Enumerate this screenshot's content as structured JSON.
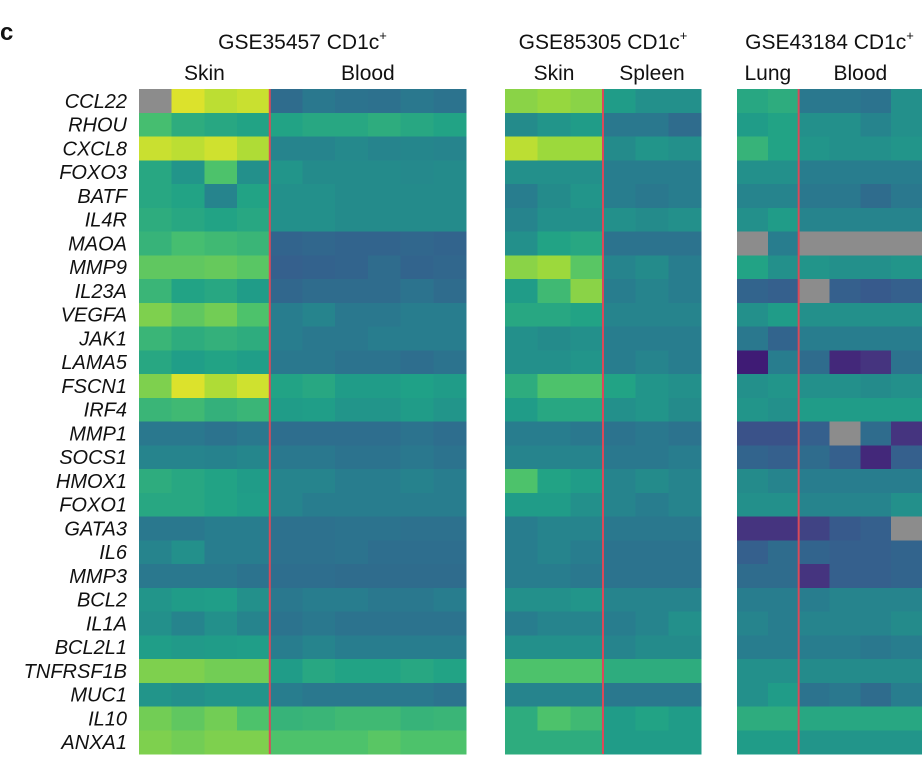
{
  "panel_label": "c",
  "colors": {
    "divider": "#d94a5a",
    "missing": "#8c8c8c",
    "scale": [
      "#3b0f70",
      "#46327e",
      "#365c8d",
      "#277f8e",
      "#1fa187",
      "#4ac16d",
      "#a0da39",
      "#fde725"
    ]
  },
  "chart_data": {
    "type": "heatmap",
    "color_scale": "viridis",
    "value_range": [
      0,
      1
    ],
    "missing_color": "gray",
    "genes": [
      "CCL22",
      "RHOU",
      "CXCL8",
      "FOXO3",
      "BATF",
      "IL4R",
      "MAOA",
      "MMP9",
      "IL23A",
      "VEGFA",
      "JAK1",
      "LAMA5",
      "FSCN1",
      "IRF4",
      "MMP1",
      "SOCS1",
      "HMOX1",
      "FOXO1",
      "GATA3",
      "IL6",
      "MMP3",
      "BCL2",
      "IL1A",
      "BCL2L1",
      "TNFRSF1B",
      "MUC1",
      "IL10",
      "ANXA1"
    ],
    "datasets": [
      {
        "title": "GSE35457 CD1c",
        "title_sup": "+",
        "groups": [
          {
            "name": "Skin",
            "n": 4
          },
          {
            "name": "Blood",
            "n": 6
          }
        ],
        "values": [
          [
            null,
            0.95,
            0.9,
            0.92,
            0.35,
            0.4,
            0.38,
            0.37,
            0.4,
            0.38
          ],
          [
            0.7,
            0.62,
            0.6,
            0.58,
            0.58,
            0.6,
            0.6,
            0.62,
            0.6,
            0.58
          ],
          [
            0.92,
            0.9,
            0.93,
            0.88,
            0.45,
            0.45,
            0.47,
            0.45,
            0.46,
            0.45
          ],
          [
            0.6,
            0.52,
            0.72,
            0.5,
            0.52,
            0.48,
            0.48,
            0.48,
            0.47,
            0.48
          ],
          [
            0.6,
            0.58,
            0.45,
            0.58,
            0.5,
            0.5,
            0.48,
            0.48,
            0.48,
            0.48
          ],
          [
            0.62,
            0.6,
            0.58,
            0.6,
            0.5,
            0.5,
            0.48,
            0.48,
            0.48,
            0.48
          ],
          [
            0.65,
            0.7,
            0.68,
            0.66,
            0.32,
            0.33,
            0.32,
            0.32,
            0.33,
            0.32
          ],
          [
            0.75,
            0.75,
            0.76,
            0.74,
            0.3,
            0.31,
            0.32,
            0.35,
            0.32,
            0.33
          ],
          [
            0.66,
            0.58,
            0.6,
            0.55,
            0.33,
            0.35,
            0.35,
            0.35,
            0.38,
            0.35
          ],
          [
            0.8,
            0.75,
            0.78,
            0.72,
            0.42,
            0.45,
            0.4,
            0.4,
            0.42,
            0.42
          ],
          [
            0.66,
            0.62,
            0.64,
            0.62,
            0.42,
            0.4,
            0.4,
            0.42,
            0.42,
            0.42
          ],
          [
            0.6,
            0.56,
            0.58,
            0.56,
            0.4,
            0.4,
            0.38,
            0.38,
            0.36,
            0.38
          ],
          [
            0.8,
            0.95,
            0.88,
            0.93,
            0.58,
            0.6,
            0.55,
            0.55,
            0.57,
            0.55
          ],
          [
            0.66,
            0.68,
            0.64,
            0.66,
            0.55,
            0.56,
            0.52,
            0.52,
            0.55,
            0.52
          ],
          [
            0.4,
            0.4,
            0.38,
            0.4,
            0.36,
            0.36,
            0.36,
            0.36,
            0.38,
            0.36
          ],
          [
            0.45,
            0.45,
            0.44,
            0.46,
            0.4,
            0.4,
            0.38,
            0.38,
            0.4,
            0.38
          ],
          [
            0.62,
            0.6,
            0.58,
            0.55,
            0.45,
            0.45,
            0.42,
            0.42,
            0.44,
            0.42
          ],
          [
            0.6,
            0.6,
            0.58,
            0.56,
            0.45,
            0.42,
            0.42,
            0.42,
            0.42,
            0.42
          ],
          [
            0.4,
            0.4,
            0.42,
            0.42,
            0.37,
            0.37,
            0.38,
            0.38,
            0.37,
            0.37
          ],
          [
            0.45,
            0.5,
            0.42,
            0.42,
            0.37,
            0.37,
            0.38,
            0.36,
            0.36,
            0.36
          ],
          [
            0.4,
            0.4,
            0.4,
            0.38,
            0.36,
            0.36,
            0.35,
            0.35,
            0.35,
            0.35
          ],
          [
            0.52,
            0.55,
            0.56,
            0.5,
            0.4,
            0.42,
            0.42,
            0.4,
            0.4,
            0.42
          ],
          [
            0.5,
            0.45,
            0.5,
            0.45,
            0.38,
            0.4,
            0.38,
            0.38,
            0.38,
            0.38
          ],
          [
            0.56,
            0.54,
            0.55,
            0.56,
            0.42,
            0.45,
            0.42,
            0.42,
            0.42,
            0.42
          ],
          [
            0.8,
            0.8,
            0.78,
            0.78,
            0.55,
            0.6,
            0.58,
            0.58,
            0.6,
            0.58
          ],
          [
            0.52,
            0.5,
            0.52,
            0.52,
            0.42,
            0.4,
            0.4,
            0.4,
            0.4,
            0.38
          ],
          [
            0.78,
            0.75,
            0.78,
            0.72,
            0.65,
            0.66,
            0.68,
            0.68,
            0.65,
            0.66
          ],
          [
            0.8,
            0.78,
            0.8,
            0.8,
            0.72,
            0.72,
            0.72,
            0.74,
            0.72,
            0.72
          ]
        ]
      },
      {
        "title": "GSE85305 CD1c",
        "title_sup": "+",
        "groups": [
          {
            "name": "Skin",
            "n": 3
          },
          {
            "name": "Spleen",
            "n": 3
          }
        ],
        "values": [
          [
            0.82,
            0.84,
            0.82,
            0.55,
            0.5,
            0.5
          ],
          [
            0.48,
            0.52,
            0.55,
            0.4,
            0.4,
            0.35
          ],
          [
            0.9,
            0.85,
            0.85,
            0.48,
            0.52,
            0.5
          ],
          [
            0.5,
            0.5,
            0.5,
            0.42,
            0.42,
            0.42
          ],
          [
            0.42,
            0.48,
            0.52,
            0.42,
            0.4,
            0.42
          ],
          [
            0.45,
            0.5,
            0.5,
            0.5,
            0.48,
            0.5
          ],
          [
            0.5,
            0.58,
            0.6,
            0.38,
            0.38,
            0.38
          ],
          [
            0.82,
            0.85,
            0.74,
            0.45,
            0.48,
            0.42
          ],
          [
            0.55,
            0.68,
            0.82,
            0.42,
            0.45,
            0.42
          ],
          [
            0.6,
            0.6,
            0.58,
            0.45,
            0.45,
            0.45
          ],
          [
            0.5,
            0.48,
            0.5,
            0.42,
            0.42,
            0.42
          ],
          [
            0.5,
            0.5,
            0.52,
            0.42,
            0.45,
            0.42
          ],
          [
            0.62,
            0.72,
            0.72,
            0.58,
            0.52,
            0.5
          ],
          [
            0.55,
            0.6,
            0.6,
            0.5,
            0.52,
            0.48
          ],
          [
            0.42,
            0.42,
            0.4,
            0.38,
            0.4,
            0.38
          ],
          [
            0.45,
            0.45,
            0.45,
            0.4,
            0.4,
            0.42
          ],
          [
            0.72,
            0.58,
            0.55,
            0.45,
            0.48,
            0.45
          ],
          [
            0.55,
            0.55,
            0.5,
            0.45,
            0.42,
            0.45
          ],
          [
            0.42,
            0.45,
            0.45,
            0.4,
            0.4,
            0.4
          ],
          [
            0.42,
            0.45,
            0.42,
            0.38,
            0.38,
            0.38
          ],
          [
            0.42,
            0.42,
            0.4,
            0.38,
            0.38,
            0.38
          ],
          [
            0.5,
            0.5,
            0.52,
            0.45,
            0.45,
            0.45
          ],
          [
            0.42,
            0.45,
            0.45,
            0.42,
            0.45,
            0.5
          ],
          [
            0.5,
            0.5,
            0.5,
            0.45,
            0.48,
            0.48
          ],
          [
            0.72,
            0.72,
            0.72,
            0.62,
            0.62,
            0.62
          ],
          [
            0.45,
            0.45,
            0.45,
            0.4,
            0.4,
            0.4
          ],
          [
            0.62,
            0.72,
            0.68,
            0.55,
            0.58,
            0.55
          ],
          [
            0.62,
            0.62,
            0.62,
            0.55,
            0.55,
            0.55
          ]
        ]
      },
      {
        "title": "GSE43184 CD1c",
        "title_sup": "+",
        "groups": [
          {
            "name": "Lung",
            "n": 2
          },
          {
            "name": "Blood",
            "n": 4
          }
        ],
        "values": [
          [
            0.6,
            0.62,
            0.4,
            0.4,
            0.38,
            0.5
          ],
          [
            0.55,
            0.58,
            0.5,
            0.5,
            0.45,
            0.5
          ],
          [
            0.65,
            0.58,
            0.52,
            0.5,
            0.5,
            0.52
          ],
          [
            0.5,
            0.5,
            0.42,
            0.42,
            0.42,
            0.42
          ],
          [
            0.45,
            0.45,
            0.4,
            0.4,
            0.35,
            0.4
          ],
          [
            0.5,
            0.55,
            0.45,
            0.45,
            0.45,
            0.45
          ],
          [
            null,
            0.42,
            null,
            null,
            null,
            null
          ],
          [
            0.58,
            0.5,
            0.52,
            0.5,
            0.5,
            0.52
          ],
          [
            0.32,
            0.3,
            null,
            0.3,
            0.28,
            0.3
          ],
          [
            0.5,
            0.55,
            0.5,
            0.5,
            0.5,
            0.5
          ],
          [
            0.4,
            0.32,
            0.42,
            0.42,
            0.42,
            0.42
          ],
          [
            0.05,
            0.42,
            0.35,
            0.1,
            0.15,
            0.38
          ],
          [
            0.5,
            0.52,
            0.5,
            0.5,
            0.48,
            0.5
          ],
          [
            0.52,
            0.5,
            0.55,
            0.55,
            0.55,
            0.55
          ],
          [
            0.25,
            0.25,
            0.3,
            null,
            0.35,
            0.15
          ],
          [
            0.32,
            0.3,
            0.35,
            0.3,
            0.1,
            0.3
          ],
          [
            0.48,
            0.45,
            0.42,
            0.42,
            0.42,
            0.42
          ],
          [
            0.5,
            0.5,
            0.45,
            0.45,
            0.45,
            0.5
          ],
          [
            0.15,
            0.15,
            0.2,
            0.28,
            0.3,
            null
          ],
          [
            0.3,
            0.35,
            0.32,
            0.3,
            0.3,
            0.32
          ],
          [
            0.35,
            0.35,
            0.15,
            0.3,
            0.3,
            0.32
          ],
          [
            0.42,
            0.42,
            0.42,
            0.45,
            0.45,
            0.45
          ],
          [
            0.45,
            0.42,
            0.45,
            0.45,
            0.45,
            0.48
          ],
          [
            0.42,
            0.42,
            0.42,
            0.42,
            0.4,
            0.42
          ],
          [
            0.5,
            0.5,
            0.48,
            0.48,
            0.48,
            0.48
          ],
          [
            0.5,
            0.55,
            0.38,
            0.4,
            0.35,
            0.42
          ],
          [
            0.62,
            0.62,
            0.6,
            0.6,
            0.6,
            0.6
          ],
          [
            0.55,
            0.55,
            0.52,
            0.52,
            0.52,
            0.52
          ]
        ]
      }
    ]
  }
}
